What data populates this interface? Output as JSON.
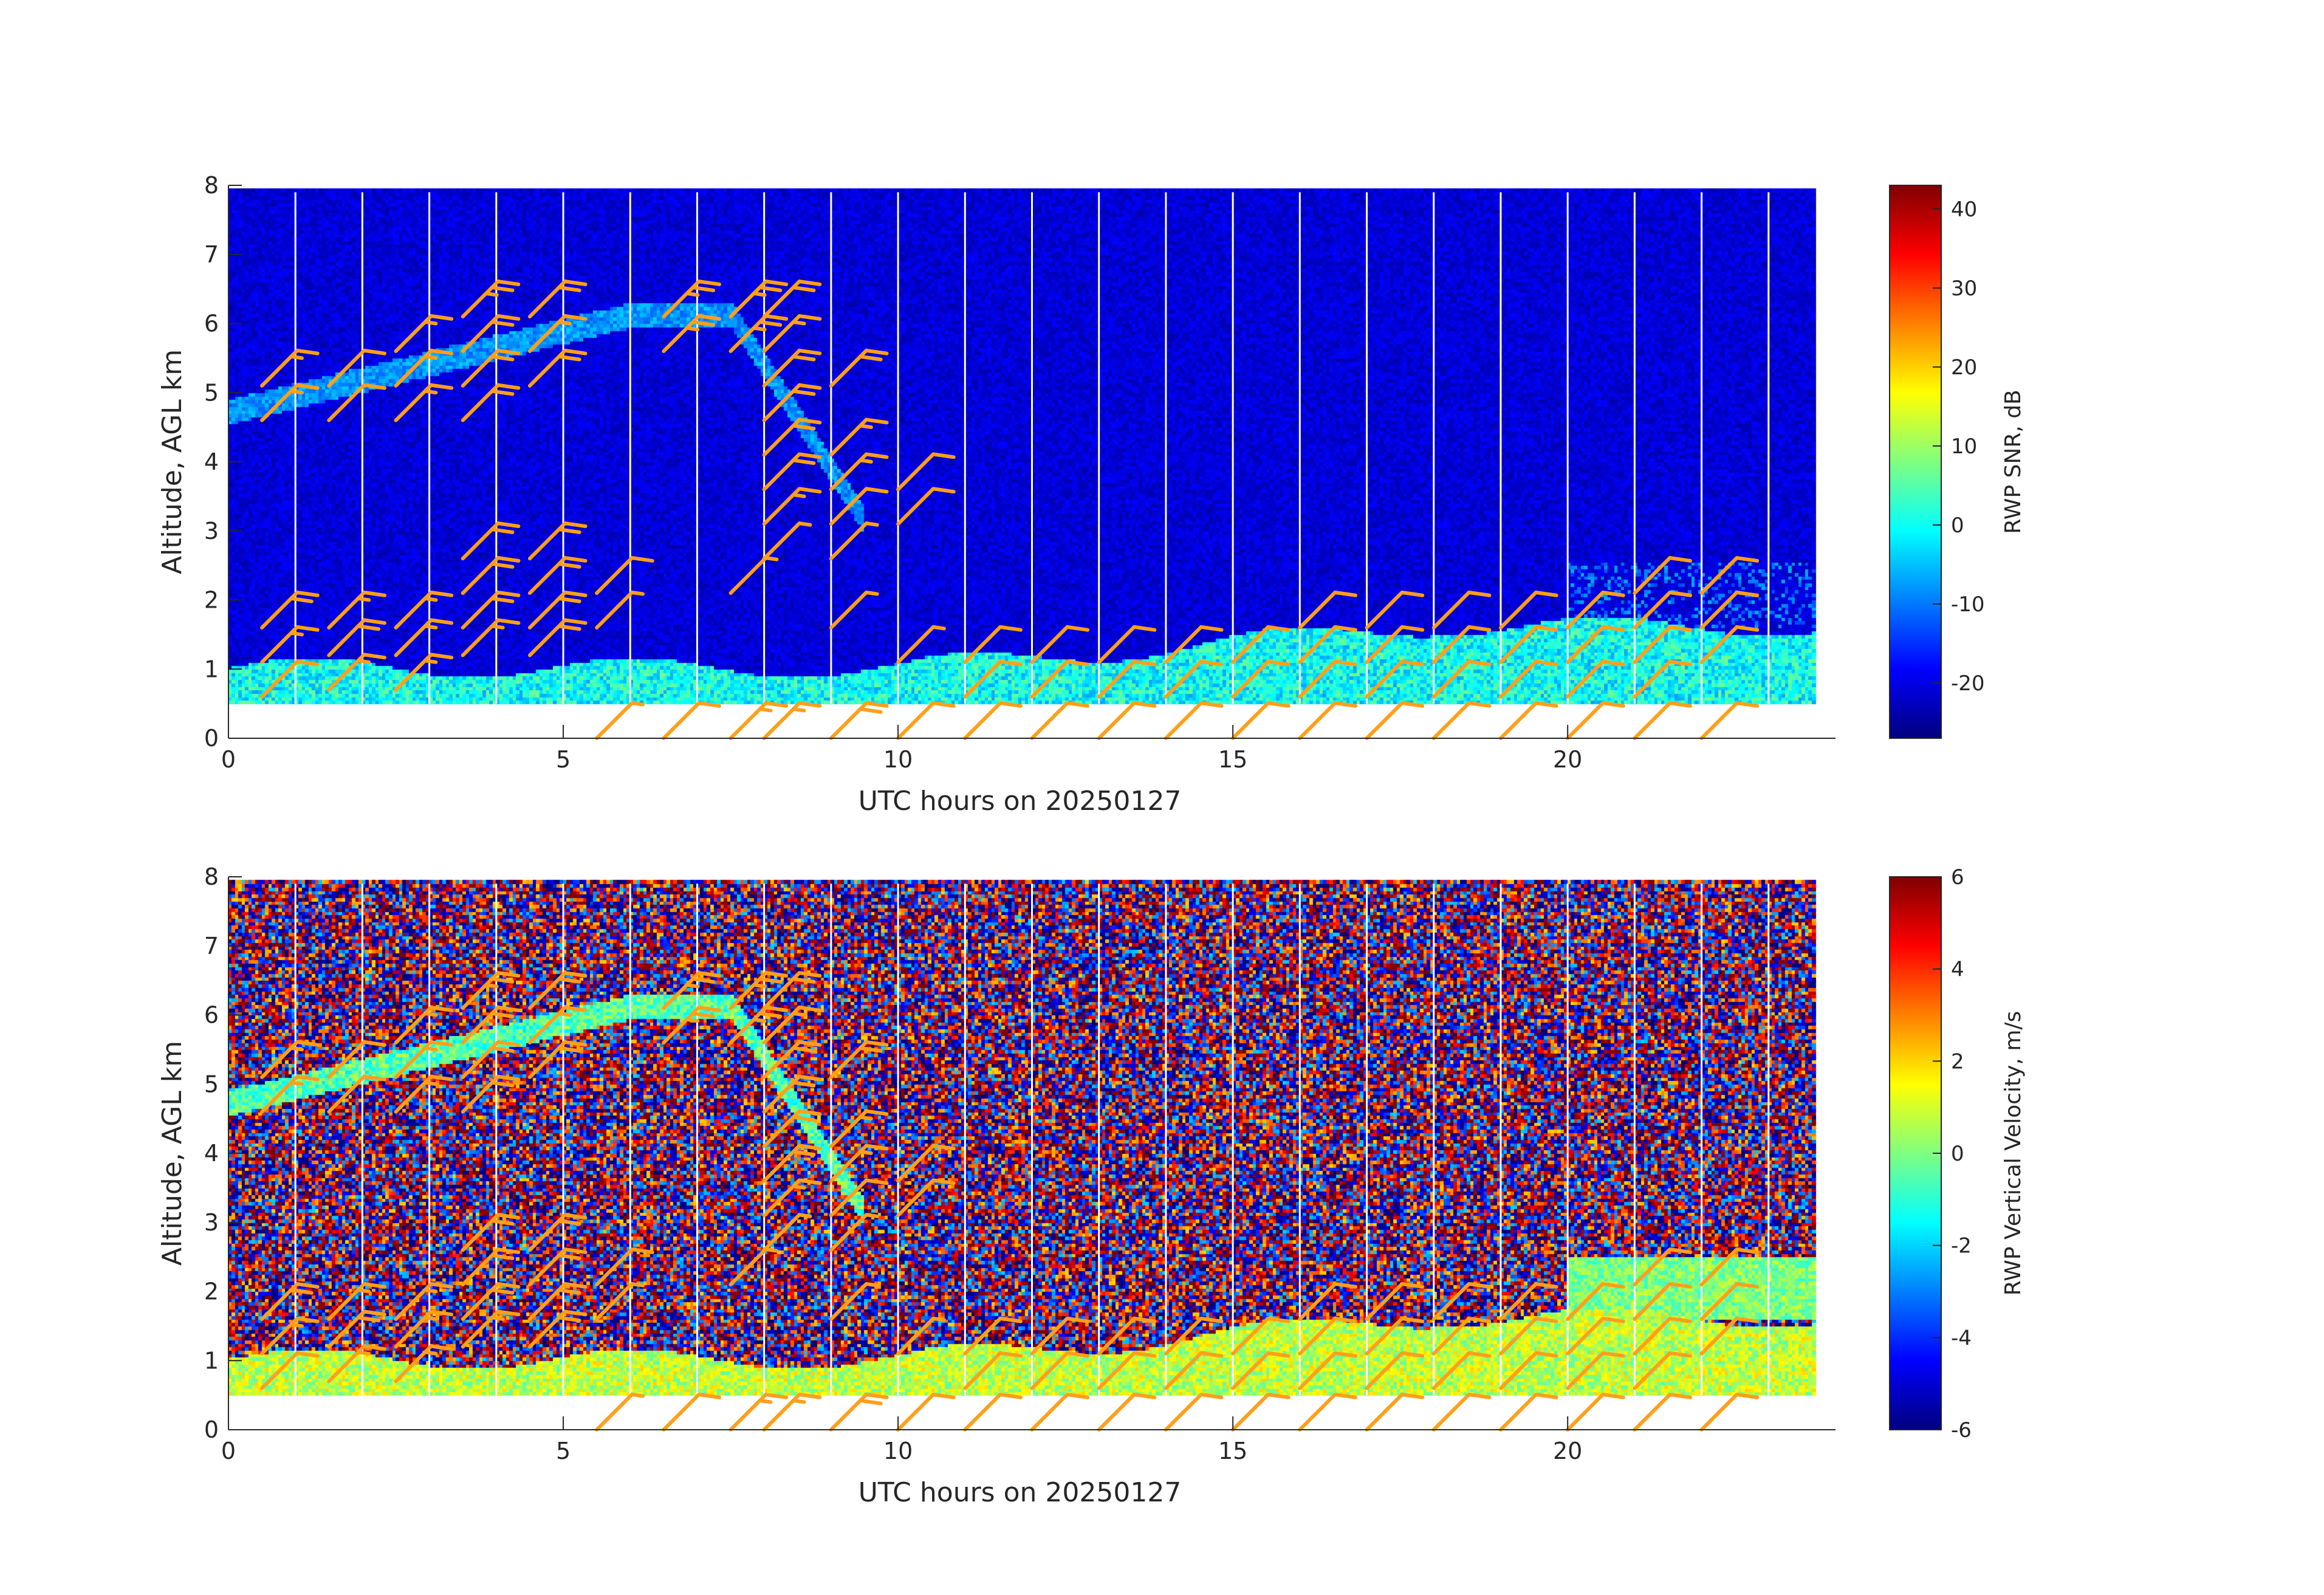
{
  "chart_data": [
    {
      "type": "heatmap",
      "name": "snr-panel",
      "xlabel": "UTC hours on 20250127",
      "ylabel": "Altitude, AGL km",
      "xlim": [
        0,
        24
      ],
      "ylim": [
        0,
        8
      ],
      "x_ticks": [
        0,
        5,
        10,
        15,
        20
      ],
      "y_ticks": [
        0,
        1,
        2,
        3,
        4,
        5,
        6,
        7,
        8
      ],
      "data_altitude_range_km": [
        0.5,
        7.9
      ],
      "colorbar": {
        "label": "RWP SNR, dB",
        "range": [
          -27,
          43
        ],
        "ticks": [
          -20,
          -10,
          0,
          10,
          20,
          30,
          40
        ],
        "colormap": "jet"
      },
      "background_value": -20,
      "features": [
        {
          "description": "boundary layer",
          "x_range": [
            0,
            23.5
          ],
          "top_km": [
            1.0,
            1.6
          ],
          "value": 0
        },
        {
          "description": "elevated layer",
          "x_range": [
            0,
            9.5
          ],
          "alt_km": [
            4.5,
            6.2
          ],
          "value": -8
        },
        {
          "description": "upper edge layer",
          "x_range": [
            20,
            23.7
          ],
          "alt_km": [
            1.6,
            2.5
          ],
          "value": -8
        }
      ],
      "grid": false
    },
    {
      "type": "heatmap",
      "name": "velocity-panel",
      "xlabel": "UTC hours on 20250127",
      "ylabel": "Altitude, AGL km",
      "xlim": [
        0,
        24
      ],
      "ylim": [
        0,
        8
      ],
      "x_ticks": [
        0,
        5,
        10,
        15,
        20
      ],
      "y_ticks": [
        0,
        1,
        2,
        3,
        4,
        5,
        6,
        7,
        8
      ],
      "data_altitude_range_km": [
        0.5,
        7.9
      ],
      "colorbar": {
        "label": "RWP Vertical Velocity, m/s",
        "range": [
          -6,
          6
        ],
        "ticks": [
          -6,
          -4,
          -2,
          0,
          2,
          4,
          6
        ],
        "colormap": "jet"
      },
      "background_value": "noise",
      "features": [
        {
          "description": "boundary layer",
          "x_range": [
            0,
            23.5
          ],
          "top_km": [
            1.0,
            1.6
          ],
          "value": 0.8
        },
        {
          "description": "elevated layer",
          "x_range": [
            0,
            9.5
          ],
          "alt_km": [
            4.5,
            6.2
          ],
          "value": -0.5
        }
      ],
      "grid": false
    }
  ],
  "wind_barbs": {
    "color": "#FF9F1A",
    "note": "Hourly wind barbs overlaid on both panels",
    "stations": [
      {
        "t": 0.5,
        "levels": [
          [
            0.6,
            10
          ],
          [
            1.1,
            15
          ],
          [
            1.6,
            20
          ],
          [
            4.6,
            15
          ],
          [
            5.1,
            15
          ]
        ]
      },
      {
        "t": 1.5,
        "levels": [
          [
            0.7,
            15
          ],
          [
            1.2,
            20
          ],
          [
            1.6,
            15
          ],
          [
            4.6,
            10
          ],
          [
            5.1,
            10
          ]
        ]
      },
      {
        "t": 2.5,
        "levels": [
          [
            0.7,
            15
          ],
          [
            1.2,
            15
          ],
          [
            1.6,
            15
          ],
          [
            4.6,
            15
          ],
          [
            5.1,
            15
          ],
          [
            5.6,
            15
          ]
        ]
      },
      {
        "t": 3.5,
        "levels": [
          [
            1.2,
            15
          ],
          [
            1.6,
            20
          ],
          [
            2.1,
            20
          ],
          [
            2.6,
            20
          ],
          [
            4.6,
            20
          ],
          [
            5.1,
            20
          ],
          [
            5.6,
            20
          ],
          [
            6.1,
            25
          ]
        ]
      },
      {
        "t": 4.5,
        "levels": [
          [
            1.2,
            20
          ],
          [
            1.6,
            20
          ],
          [
            2.1,
            20
          ],
          [
            2.6,
            20
          ],
          [
            5.1,
            20
          ],
          [
            5.6,
            15
          ],
          [
            6.1,
            20
          ]
        ]
      },
      {
        "t": 5.5,
        "levels": [
          [
            0,
            5
          ],
          [
            1.6,
            5
          ],
          [
            2.1,
            10
          ]
        ]
      },
      {
        "t": 6.5,
        "levels": [
          [
            0,
            10
          ],
          [
            5.6,
            25
          ],
          [
            6.1,
            25
          ]
        ]
      },
      {
        "t": 7.5,
        "levels": [
          [
            0,
            15
          ],
          [
            2.1,
            5
          ],
          [
            5.6,
            25
          ],
          [
            6.1,
            25
          ]
        ]
      },
      {
        "t": 8.0,
        "levels": [
          [
            0,
            15
          ],
          [
            2.6,
            5
          ],
          [
            3.1,
            15
          ],
          [
            3.6,
            20
          ],
          [
            4.1,
            20
          ],
          [
            4.6,
            20
          ],
          [
            5.1,
            20
          ],
          [
            5.6,
            15
          ],
          [
            6.1,
            20
          ]
        ]
      },
      {
        "t": 9.0,
        "levels": [
          [
            0,
            20
          ],
          [
            1.6,
            5
          ],
          [
            2.6,
            5
          ],
          [
            3.1,
            10
          ],
          [
            3.6,
            15
          ],
          [
            4.1,
            15
          ],
          [
            5.1,
            20
          ]
        ]
      },
      {
        "t": 10.0,
        "levels": [
          [
            0,
            10
          ],
          [
            1.1,
            5
          ],
          [
            3.1,
            10
          ],
          [
            3.6,
            10
          ]
        ]
      },
      {
        "t": 11.0,
        "levels": [
          [
            0,
            10
          ],
          [
            0.6,
            10
          ],
          [
            1.1,
            10
          ]
        ]
      },
      {
        "t": 12.0,
        "levels": [
          [
            0,
            10
          ],
          [
            0.6,
            10
          ],
          [
            1.1,
            10
          ]
        ]
      },
      {
        "t": 13.0,
        "levels": [
          [
            0,
            10
          ],
          [
            0.6,
            10
          ],
          [
            1.1,
            10
          ]
        ]
      },
      {
        "t": 14.0,
        "levels": [
          [
            0,
            10
          ],
          [
            0.6,
            10
          ],
          [
            1.1,
            10
          ]
        ]
      },
      {
        "t": 15.0,
        "levels": [
          [
            0,
            10
          ],
          [
            0.6,
            10
          ],
          [
            1.1,
            10
          ]
        ]
      },
      {
        "t": 16.0,
        "levels": [
          [
            0,
            10
          ],
          [
            0.6,
            10
          ],
          [
            1.1,
            10
          ],
          [
            1.6,
            10
          ]
        ]
      },
      {
        "t": 17.0,
        "levels": [
          [
            0,
            10
          ],
          [
            0.6,
            10
          ],
          [
            1.1,
            10
          ],
          [
            1.6,
            10
          ]
        ]
      },
      {
        "t": 18.0,
        "levels": [
          [
            0,
            10
          ],
          [
            0.6,
            10
          ],
          [
            1.1,
            10
          ],
          [
            1.6,
            10
          ]
        ]
      },
      {
        "t": 19.0,
        "levels": [
          [
            0,
            10
          ],
          [
            0.6,
            10
          ],
          [
            1.1,
            10
          ],
          [
            1.6,
            10
          ]
        ]
      },
      {
        "t": 20.0,
        "levels": [
          [
            0,
            10
          ],
          [
            0.6,
            10
          ],
          [
            1.1,
            10
          ],
          [
            1.6,
            10
          ]
        ]
      },
      {
        "t": 21.0,
        "levels": [
          [
            0,
            10
          ],
          [
            0.6,
            10
          ],
          [
            1.1,
            10
          ],
          [
            1.6,
            10
          ],
          [
            2.1,
            10
          ]
        ]
      },
      {
        "t": 22.0,
        "levels": [
          [
            0,
            10
          ],
          [
            1.1,
            10
          ],
          [
            1.6,
            10
          ],
          [
            2.1,
            10
          ]
        ]
      }
    ]
  }
}
